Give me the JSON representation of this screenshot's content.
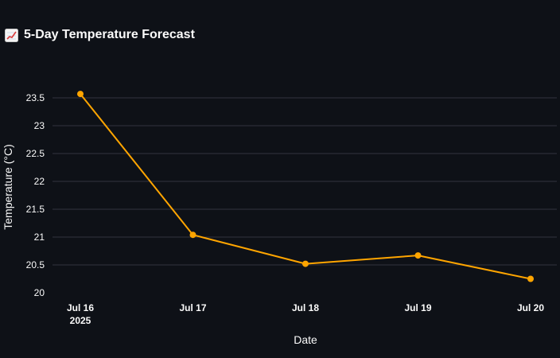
{
  "page": {
    "title": "5-Day Temperature Forecast",
    "title_icon": "chart-increasing-icon"
  },
  "colors": {
    "background": "#0e1117",
    "line": "#ffa500",
    "grid": "#31333f",
    "text": "#fafafa"
  },
  "chart_data": {
    "type": "line",
    "title": "5-Day Temperature Forecast",
    "xlabel": "Date",
    "ylabel": "Temperature (°C)",
    "x": [
      "2025-07-16",
      "2025-07-17",
      "2025-07-18",
      "2025-07-19",
      "2025-07-20"
    ],
    "x_tick_labels": [
      "Jul 16",
      "Jul 17",
      "Jul 18",
      "Jul 19",
      "Jul 20"
    ],
    "x_tick_sublabel": "2025",
    "series": [
      {
        "values": [
          23.57,
          21.04,
          20.52,
          20.67,
          20.25
        ]
      }
    ],
    "yticks": [
      20,
      20.5,
      21,
      21.5,
      22,
      22.5,
      23,
      23.5
    ],
    "ytick_labels": [
      "20",
      "20.5",
      "21",
      "21.5",
      "22",
      "22.5",
      "23",
      "23.5"
    ],
    "ylim": [
      19.8,
      24.0
    ],
    "grid": true,
    "markers": true
  }
}
